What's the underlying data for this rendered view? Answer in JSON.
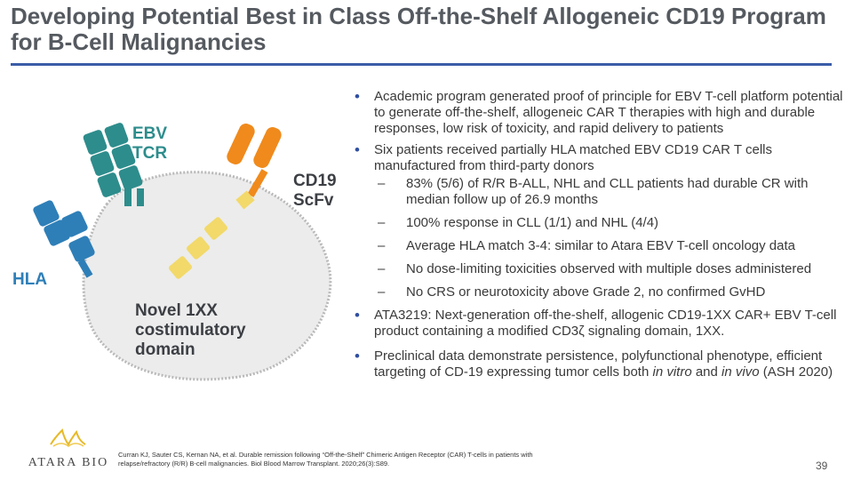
{
  "slide": {
    "title": "Developing Potential Best in Class Off-the-Shelf Allogeneic CD19 Program for B-Cell Malignancies",
    "page_number": "39"
  },
  "figure": {
    "labels": {
      "ebv_tcr": "EBV TCR",
      "cd19_scfv": "CD19 ScFv",
      "hla": "HLA",
      "novel_domain": "Novel 1XX costimulatory domain"
    },
    "colors": {
      "tcr": "#2d8d8c",
      "hla": "#2e7fb8",
      "scfv": "#f08a1c",
      "costim": "#f2d96a",
      "cell": "#ececec"
    }
  },
  "content": {
    "b1": "Academic program generated proof of principle for EBV T-cell platform potential to generate off-the-shelf, allogeneic CAR T therapies with high and durable responses, low risk of toxicity, and rapid delivery to patients",
    "b2": "Six patients received partially HLA matched EBV CD19 CAR T cells manufactured from third-party donors",
    "s1": "83% (5/6) of R/R B-ALL, NHL and CLL patients had durable CR with median follow up of 26.9 months",
    "s2": "100% response in CLL (1/1) and NHL (4/4)",
    "s3": "Average HLA match 3-4: similar to Atara EBV T-cell oncology data",
    "s4": "No dose-limiting toxicities observed with multiple doses administered",
    "s5": "No CRS or neurotoxicity above Grade 2, no confirmed GvHD",
    "b3": "ATA3219: Next-generation off-the-shelf, allogenic CD19-1XX CAR+ EBV T-cell product containing a modified CD3ζ signaling domain, 1XX.",
    "b4_a": "Preclinical data demonstrate persistence, polyfunctional phenotype, efficient targeting of CD-19 expressing tumor cells both ",
    "b4_i1": "in vitro",
    "b4_b": " and ",
    "b4_i2": "in vivo",
    "b4_c": " (ASH 2020)"
  },
  "footer": {
    "logo_text": "ATARA BIO",
    "citation": "Curran KJ, Sauter CS, Kernan NA, et al. Durable remission following “Off-the-Shelf” Chimeric Antigen Receptor (CAR) T-cells in patients with relapse/refractory (R/R) B-cell malignancies. Biol Blood Marrow Transplant. 2020;26(3):S89."
  }
}
